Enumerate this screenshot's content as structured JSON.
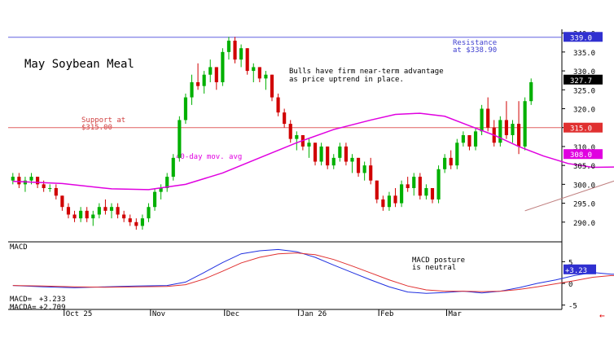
{
  "chart_data": [
    {
      "type": "candlestick",
      "title": "May Soybean Meal",
      "ylim": [
        285,
        341
      ],
      "y_ticks": [
        290,
        295,
        300,
        305,
        310,
        315,
        320,
        325,
        330,
        335,
        340
      ],
      "y_tick_labels": [
        "290.0",
        "295.0",
        "300.0",
        "305.0",
        "310.0",
        "315.0",
        "320.0",
        "325.0",
        "330.0",
        "335.0",
        "340.0"
      ],
      "grid": false,
      "colors": {
        "up": "#00b000",
        "down": "#d00000",
        "ma": "#e000e0",
        "support": "#e06060",
        "resistance": "#6060e0",
        "trend": "#c08080"
      },
      "candles": [
        [
          301,
          303,
          300,
          302
        ],
        [
          302,
          303,
          299,
          300
        ],
        [
          300,
          302,
          298,
          301
        ],
        [
          301,
          303,
          300,
          302
        ],
        [
          302,
          302,
          299,
          300
        ],
        [
          300,
          301,
          298,
          299
        ],
        [
          299,
          300,
          298,
          299
        ],
        [
          299,
          300,
          296,
          297
        ],
        [
          297,
          297,
          293,
          294
        ],
        [
          294,
          295,
          291,
          292
        ],
        [
          292,
          293,
          290,
          291
        ],
        [
          291,
          294,
          290,
          293
        ],
        [
          293,
          294,
          290,
          291
        ],
        [
          291,
          293,
          289,
          292
        ],
        [
          292,
          295,
          291,
          294
        ],
        [
          294,
          296,
          292,
          293
        ],
        [
          293,
          295,
          291,
          294
        ],
        [
          294,
          295,
          291,
          292
        ],
        [
          292,
          293,
          290,
          291
        ],
        [
          291,
          292,
          289,
          290
        ],
        [
          290,
          291,
          288,
          289
        ],
        [
          289,
          292,
          288,
          291
        ],
        [
          291,
          295,
          290,
          294
        ],
        [
          294,
          299,
          293,
          298
        ],
        [
          298,
          300,
          296,
          299
        ],
        [
          299,
          303,
          298,
          302
        ],
        [
          302,
          308,
          301,
          307
        ],
        [
          307,
          318,
          306,
          317
        ],
        [
          317,
          324,
          316,
          323
        ],
        [
          323,
          329,
          321,
          327
        ],
        [
          327,
          332,
          325,
          326
        ],
        [
          326,
          330,
          324,
          329
        ],
        [
          329,
          333,
          327,
          331
        ],
        [
          331,
          331,
          325,
          327
        ],
        [
          327,
          336,
          326,
          335
        ],
        [
          335,
          339,
          333,
          338
        ],
        [
          338,
          339,
          332,
          333
        ],
        [
          333,
          337,
          331,
          336
        ],
        [
          336,
          336,
          329,
          330
        ],
        [
          330,
          332,
          327,
          331
        ],
        [
          331,
          331,
          327,
          328
        ],
        [
          328,
          330,
          325,
          329
        ],
        [
          329,
          329,
          322,
          323
        ],
        [
          323,
          324,
          318,
          319
        ],
        [
          319,
          320,
          315,
          316
        ],
        [
          316,
          317,
          311,
          312
        ],
        [
          312,
          314,
          309,
          313
        ],
        [
          313,
          313,
          309,
          310
        ],
        [
          310,
          312,
          307,
          311
        ],
        [
          311,
          311,
          305,
          306
        ],
        [
          306,
          311,
          305,
          310
        ],
        [
          310,
          310,
          304,
          305
        ],
        [
          305,
          308,
          304,
          307
        ],
        [
          307,
          311,
          306,
          310
        ],
        [
          310,
          311,
          305,
          306
        ],
        [
          306,
          308,
          303,
          307
        ],
        [
          307,
          307,
          302,
          303
        ],
        [
          303,
          306,
          301,
          305
        ],
        [
          305,
          307,
          300,
          301
        ],
        [
          301,
          301,
          295,
          296
        ],
        [
          296,
          297,
          293,
          294
        ],
        [
          294,
          298,
          293,
          297
        ],
        [
          297,
          299,
          294,
          295
        ],
        [
          295,
          301,
          294,
          300
        ],
        [
          300,
          302,
          298,
          299
        ],
        [
          299,
          303,
          297,
          302
        ],
        [
          302,
          303,
          296,
          297
        ],
        [
          297,
          300,
          296,
          299
        ],
        [
          299,
          299,
          295,
          296
        ],
        [
          296,
          305,
          295,
          304
        ],
        [
          304,
          308,
          303,
          307
        ],
        [
          307,
          309,
          304,
          305
        ],
        [
          305,
          312,
          304,
          311
        ],
        [
          311,
          314,
          310,
          313
        ],
        [
          313,
          313,
          309,
          310
        ],
        [
          310,
          315,
          309,
          314
        ],
        [
          314,
          321,
          313,
          320
        ],
        [
          320,
          323,
          314,
          315
        ],
        [
          315,
          317,
          310,
          311
        ],
        [
          311,
          318,
          310,
          317
        ],
        [
          317,
          322,
          312,
          313
        ],
        [
          313,
          317,
          311,
          316
        ],
        [
          316,
          322,
          308,
          310
        ],
        [
          310,
          323,
          309,
          322
        ],
        [
          322,
          328,
          321,
          327
        ]
      ],
      "ma_label": "40-day mov. avg",
      "moving_average": [
        [
          0,
          300.8
        ],
        [
          8,
          300.2
        ],
        [
          16,
          298.8
        ],
        [
          22,
          298.6
        ],
        [
          28,
          300.0
        ],
        [
          34,
          303.0
        ],
        [
          40,
          307.0
        ],
        [
          46,
          311.0
        ],
        [
          52,
          314.5
        ],
        [
          58,
          317.0
        ],
        [
          62,
          318.5
        ],
        [
          66,
          318.8
        ],
        [
          70,
          318.0
        ],
        [
          74,
          315.5
        ],
        [
          78,
          313.0
        ],
        [
          82,
          310.0
        ],
        [
          86,
          307.5
        ],
        [
          90,
          305.5
        ],
        [
          94,
          304.5
        ],
        [
          98,
          304.6
        ],
        [
          102,
          305.3
        ],
        [
          106,
          306.0
        ],
        [
          110,
          307.0
        ],
        [
          114,
          308.0
        ]
      ],
      "trendline": [
        [
          83,
          293
        ],
        [
          115,
          310
        ]
      ],
      "support": {
        "value": 315.0,
        "label_lines": [
          "Support at",
          "$315.00"
        ]
      },
      "resistance": {
        "value": 338.9,
        "label_lines": [
          "Resistance",
          "at $338.90"
        ]
      },
      "annotations": [
        "Bulls have firm near-term advantage",
        "as price uptrend in place."
      ],
      "price_tags": [
        {
          "value": 339.0,
          "text": "339.0",
          "bg": "#3030d0",
          "fg": "#ffffff"
        },
        {
          "value": 327.7,
          "text": "327.7",
          "bg": "#000000",
          "fg": "#ffffff"
        },
        {
          "value": 315.0,
          "text": "315.0",
          "bg": "#e03030",
          "fg": "#ffffff"
        },
        {
          "value": 308.0,
          "text": "308.0",
          "bg": "#e000e0",
          "fg": "#ffffff"
        }
      ]
    },
    {
      "type": "line",
      "title": "MACD",
      "ylim": [
        -6,
        9
      ],
      "y_ticks": [
        5,
        0,
        -5
      ],
      "y_tick_labels": [
        "5",
        "0",
        "-5"
      ],
      "annotation_lines": [
        "MACD posture",
        "is neutral"
      ],
      "readout": {
        "macd_label": "MACD=",
        "macd_value": "+3.233",
        "macda_label": "MACDA=",
        "macda_value": "+2.709"
      },
      "tag": {
        "value": 3.23,
        "text": "+3.23",
        "bg": "#3030d0",
        "fg": "#ffffff"
      },
      "series": [
        {
          "color": "#2030e0",
          "points": [
            [
              0,
              -0.5
            ],
            [
              5,
              -0.8
            ],
            [
              10,
              -1.0
            ],
            [
              15,
              -0.8
            ],
            [
              20,
              -0.6
            ],
            [
              25,
              -0.5
            ],
            [
              28,
              0.3
            ],
            [
              31,
              2.5
            ],
            [
              34,
              4.8
            ],
            [
              37,
              6.8
            ],
            [
              40,
              7.5
            ],
            [
              43,
              7.8
            ],
            [
              46,
              7.3
            ],
            [
              49,
              6.0
            ],
            [
              52,
              4.2
            ],
            [
              55,
              2.5
            ],
            [
              58,
              0.8
            ],
            [
              61,
              -0.8
            ],
            [
              64,
              -2.0
            ],
            [
              67,
              -2.3
            ],
            [
              70,
              -2.1
            ],
            [
              73,
              -1.8
            ],
            [
              76,
              -2.2
            ],
            [
              79,
              -1.8
            ],
            [
              82,
              -1.0
            ],
            [
              85,
              0.0
            ],
            [
              88,
              0.8
            ],
            [
              91,
              1.8
            ],
            [
              94,
              2.5
            ],
            [
              97,
              2.1
            ],
            [
              100,
              2.2
            ],
            [
              103,
              1.8
            ],
            [
              106,
              2.0
            ],
            [
              109,
              1.4
            ],
            [
              112,
              1.8
            ],
            [
              115,
              3.2
            ]
          ]
        },
        {
          "color": "#e03030",
          "points": [
            [
              0,
              -0.5
            ],
            [
              5,
              -0.6
            ],
            [
              10,
              -0.8
            ],
            [
              15,
              -0.9
            ],
            [
              20,
              -0.8
            ],
            [
              25,
              -0.7
            ],
            [
              28,
              -0.3
            ],
            [
              31,
              1.0
            ],
            [
              34,
              2.8
            ],
            [
              37,
              4.7
            ],
            [
              40,
              6.0
            ],
            [
              43,
              6.8
            ],
            [
              46,
              7.0
            ],
            [
              49,
              6.6
            ],
            [
              52,
              5.5
            ],
            [
              55,
              4.0
            ],
            [
              58,
              2.4
            ],
            [
              61,
              0.8
            ],
            [
              64,
              -0.6
            ],
            [
              67,
              -1.5
            ],
            [
              70,
              -1.8
            ],
            [
              73,
              -1.8
            ],
            [
              76,
              -1.9
            ],
            [
              79,
              -1.8
            ],
            [
              82,
              -1.4
            ],
            [
              85,
              -0.8
            ],
            [
              88,
              -0.1
            ],
            [
              91,
              0.6
            ],
            [
              94,
              1.4
            ],
            [
              97,
              1.8
            ],
            [
              100,
              1.9
            ],
            [
              103,
              1.9
            ],
            [
              106,
              1.8
            ],
            [
              109,
              1.6
            ],
            [
              112,
              1.6
            ],
            [
              115,
              2.7
            ]
          ]
        }
      ]
    }
  ],
  "x_axis": {
    "labels": [
      {
        "text": "Oct 25",
        "index": 9.5
      },
      {
        "text": "Nov",
        "index": 23.5
      },
      {
        "text": "Dec",
        "index": 35.5
      },
      {
        "text": "Jan 26",
        "index": 47.5
      },
      {
        "text": "Feb",
        "index": 60.5
      },
      {
        "text": "Mar",
        "index": 71.5
      }
    ]
  },
  "theme": {
    "axis": "#000000",
    "text": "#000000",
    "resistance_text": "#4040d0",
    "support_text": "#d04040",
    "ma_text": "#e000e0",
    "arrow": "#e00000"
  },
  "nav": {
    "arrow_label": "←"
  }
}
